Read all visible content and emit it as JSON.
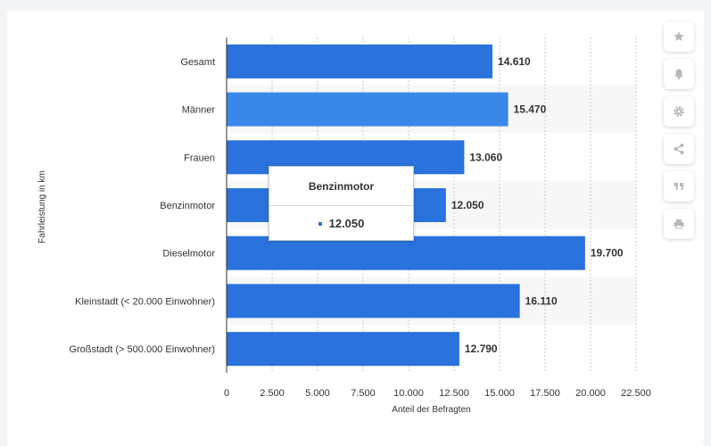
{
  "toolbar": {
    "buttons": [
      {
        "name": "favorite-star-button",
        "icon": "star-icon"
      },
      {
        "name": "notification-bell-button",
        "icon": "bell-icon"
      },
      {
        "name": "settings-gear-button",
        "icon": "gear-icon"
      },
      {
        "name": "share-button",
        "icon": "share-icon"
      },
      {
        "name": "cite-quote-button",
        "icon": "quote-icon"
      },
      {
        "name": "print-button",
        "icon": "printer-icon"
      }
    ]
  },
  "tooltip": {
    "title": "Benzinmotor",
    "value": "12.050"
  },
  "colors": {
    "bar": "#2a72dc",
    "bar_highlight": "#3a87ea",
    "stripe": "#f7f7f7",
    "grid": "#c8c8c8",
    "axis": "#333333",
    "text": "#333333"
  },
  "chart_data": {
    "type": "bar",
    "orientation": "horizontal",
    "categories": [
      "Gesamt",
      "Männer",
      "Frauen",
      "Benzinmotor",
      "Dieselmotor",
      "Kleinstadt (< 20.000 Einwohner)",
      "Großstadt (> 500.000 Einwohner)"
    ],
    "values": [
      14610,
      15470,
      13060,
      12050,
      19700,
      16110,
      12790
    ],
    "value_labels": [
      "14.610",
      "15.470",
      "13.060",
      "12.050",
      "19.700",
      "16.110",
      "12.790"
    ],
    "highlighted_index": 1,
    "xlabel": "Anteil der Befragten",
    "ylabel": "Fahrleistung in km",
    "xlim": [
      0,
      22500
    ],
    "xticks": [
      0,
      2500,
      5000,
      7500,
      10000,
      12500,
      15000,
      17500,
      20000,
      22500
    ],
    "xtick_labels": [
      "0",
      "2.500",
      "5.000",
      "7.500",
      "10.000",
      "12.500",
      "15.000",
      "17.500",
      "20.000",
      "22.500"
    ],
    "grid": true
  }
}
